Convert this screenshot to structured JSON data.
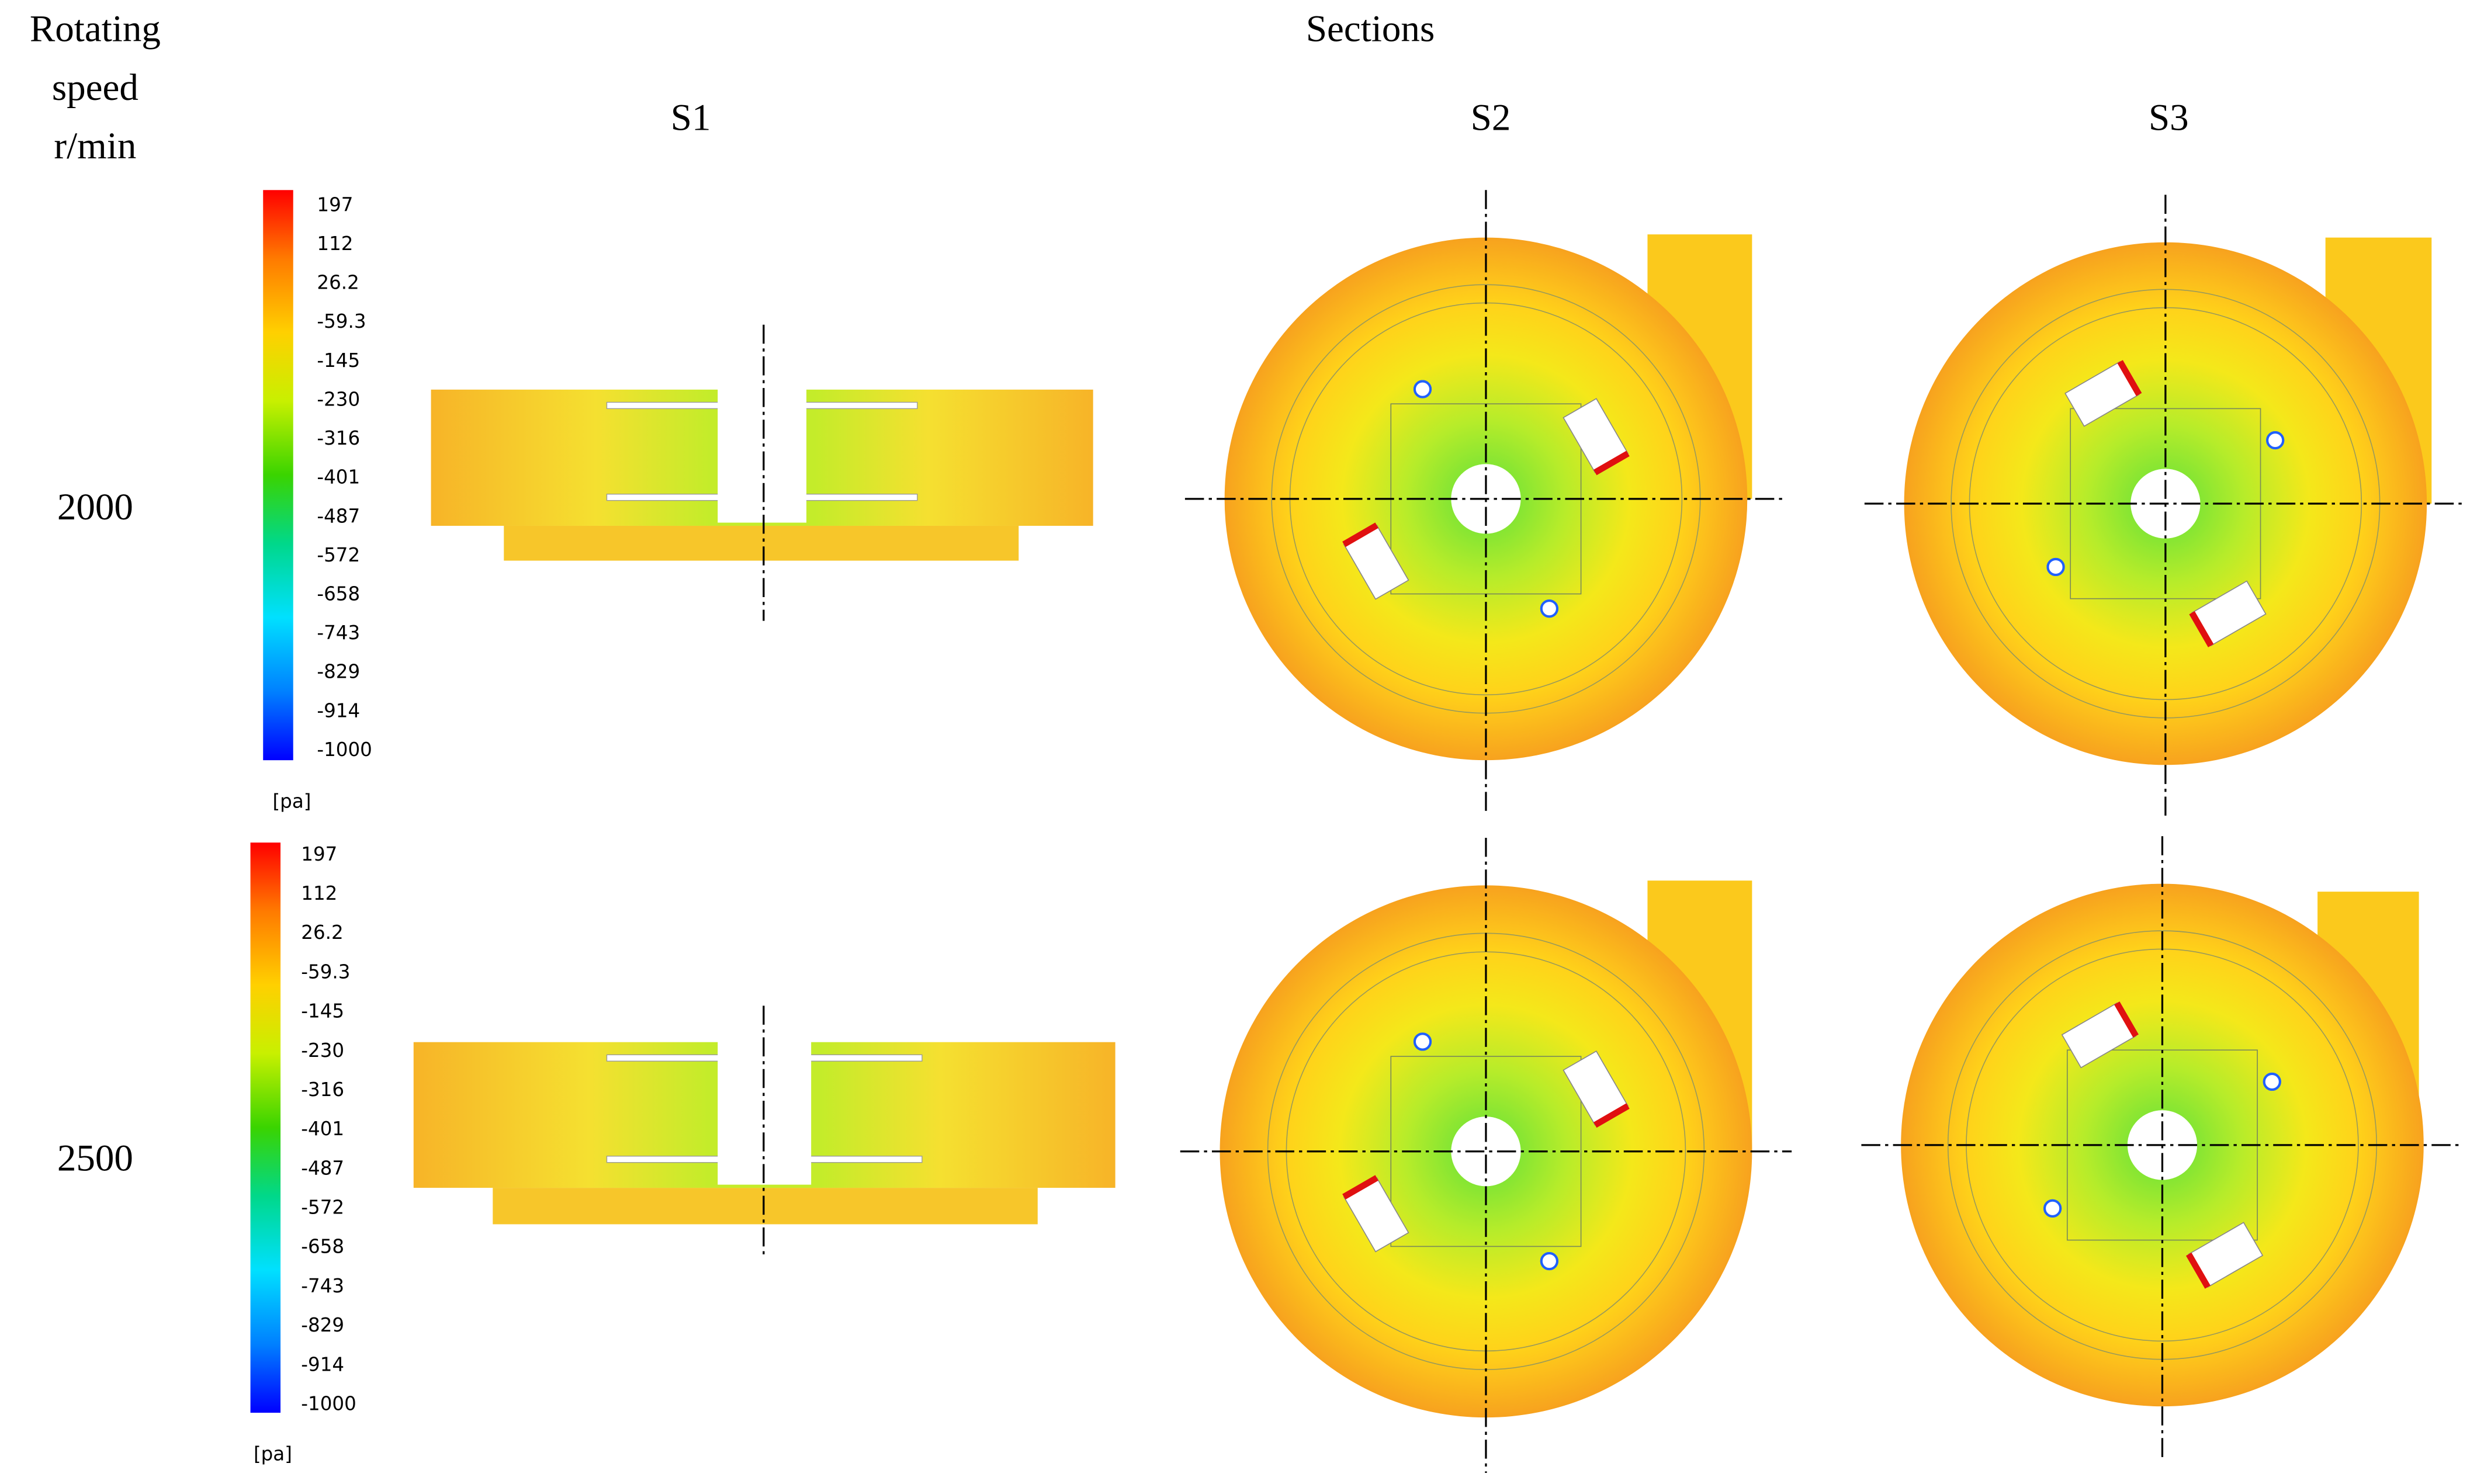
{
  "header": {
    "row_header": [
      "Rotating",
      "speed",
      "r/min"
    ],
    "column_header": "Sections",
    "sections": [
      "S1",
      "S2",
      "S3"
    ]
  },
  "rows": [
    {
      "speed": "2000",
      "legend": {
        "labels": [
          "197",
          "112",
          "26.2",
          "-59.3",
          "-145",
          "-230",
          "-316",
          "-401",
          "-487",
          "-572",
          "-658",
          "-743",
          "-829",
          "-914",
          "-1000"
        ],
        "unit": "[pa]"
      }
    },
    {
      "speed": "2500",
      "legend": {
        "labels": [
          "197",
          "112",
          "26.2",
          "-59.3",
          "-145",
          "-230",
          "-316",
          "-401",
          "-487",
          "-572",
          "-658",
          "-743",
          "-829",
          "-914",
          "-1000"
        ],
        "unit": "[pa]"
      }
    }
  ]
}
